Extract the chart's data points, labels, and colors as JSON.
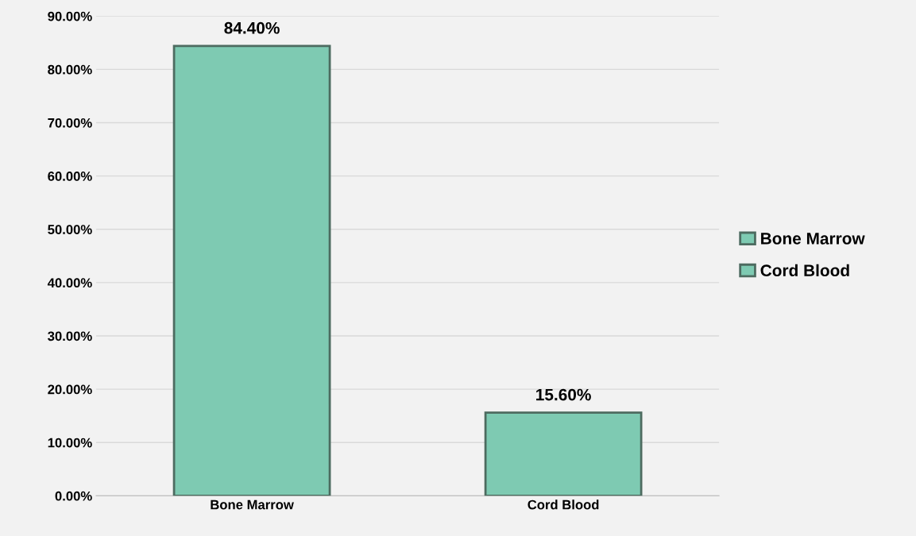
{
  "chart_data": {
    "type": "bar",
    "categories": [
      "Bone Marrow",
      "Cord Blood"
    ],
    "series": [
      {
        "name": "Bone Marrow",
        "color": "#7ecab2",
        "values": [
          84.4,
          null
        ],
        "value_labels": [
          "84.40%",
          null
        ]
      },
      {
        "name": "Cord Blood",
        "color": "#7ecab2",
        "values": [
          null,
          15.6
        ],
        "value_labels": [
          null,
          "15.60%"
        ]
      }
    ],
    "ylim": [
      0,
      90
    ],
    "yticks": [
      {
        "value": 0,
        "label": "0.00%"
      },
      {
        "value": 10,
        "label": "10.00%"
      },
      {
        "value": 20,
        "label": "20.00%"
      },
      {
        "value": 30,
        "label": "30.00%"
      },
      {
        "value": 40,
        "label": "40.00%"
      },
      {
        "value": 50,
        "label": "50.00%"
      },
      {
        "value": 60,
        "label": "60.00%"
      },
      {
        "value": 70,
        "label": "70.00%"
      },
      {
        "value": 80,
        "label": "80.00%"
      },
      {
        "value": 90,
        "label": "90.00%"
      }
    ],
    "grid": "y",
    "legend": "right"
  }
}
